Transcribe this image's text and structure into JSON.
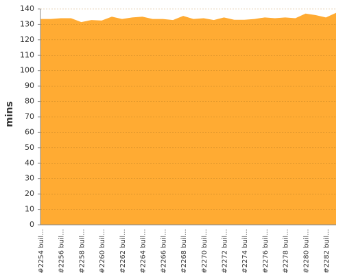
{
  "chart_data": {
    "type": "area",
    "y_label": "mins",
    "categories": [
      "#2254 buil...",
      null,
      "#2256 buil...",
      null,
      "#2258 buil...",
      null,
      "#2260 buil...",
      null,
      "#2262 buil...",
      null,
      "#2264 buil...",
      null,
      "#2266 buil...",
      null,
      "#2268 buil...",
      null,
      "#2270 buil...",
      null,
      "#2272 buil...",
      null,
      "#2274 buil...",
      null,
      "#2276 buil...",
      null,
      "#2278 buil...",
      null,
      "#2280 buil...",
      null,
      "#2282 buil...",
      null
    ],
    "values": [
      133.5,
      133.5,
      134,
      134,
      131.5,
      132.8,
      132.5,
      135,
      133.5,
      134.5,
      135,
      133.5,
      133.5,
      132.8,
      135.5,
      133.5,
      134,
      132.8,
      134.5,
      133,
      133,
      133.5,
      134.5,
      134,
      134.5,
      134,
      137,
      136,
      134.5,
      137.5
    ],
    "color": "#ffab33",
    "ylim": [
      0,
      140
    ],
    "yticks": [
      0,
      10,
      20,
      30,
      40,
      50,
      60,
      70,
      80,
      90,
      100,
      110,
      120,
      130,
      140
    ],
    "grid": true
  }
}
